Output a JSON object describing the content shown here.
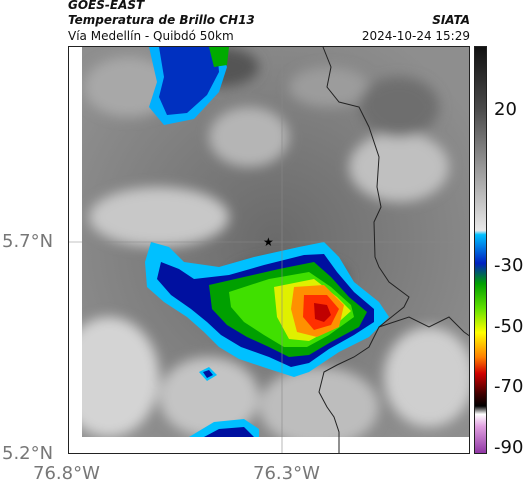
{
  "header": {
    "satellite": "GOES-EAST",
    "product": "Temperatura de Brillo CH13",
    "route": "Vía Medellín - Quibdó 50km",
    "agency": "SIATA",
    "datetime": "2024-10-24 15:29"
  },
  "axes": {
    "lat_labels": [
      "5.7°N",
      "5.2°N"
    ],
    "lon_labels": [
      "76.8°W",
      "76.3°W"
    ]
  },
  "colorbar": {
    "ticks": [
      "20",
      "-30",
      "-50",
      "-70",
      "-90"
    ],
    "colors": [
      "#d7d7d7",
      "#9a9a9a",
      "#505050",
      "#1a1a1a",
      "#3060ff",
      "#00c000",
      "#ffff00",
      "#ff6000",
      "#cc0000",
      "#600000",
      "#ffffff",
      "#e090e0",
      "#a040a0"
    ]
  },
  "marker": {
    "symbol": "★",
    "name": "location-marker-icon"
  }
}
